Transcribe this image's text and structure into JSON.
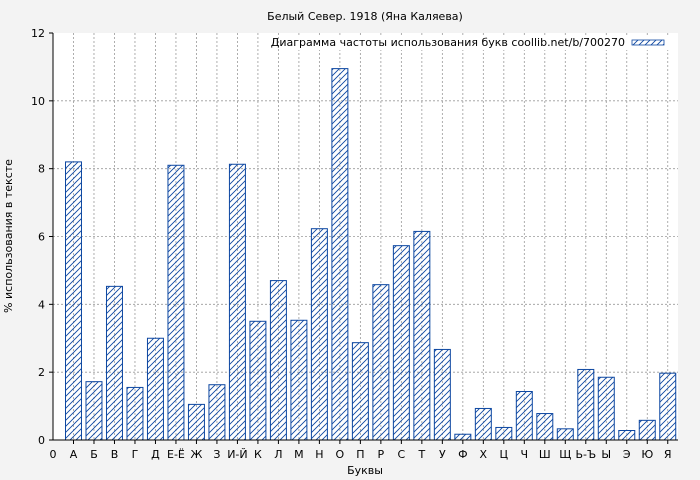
{
  "chart_data": {
    "type": "bar",
    "title": "Белый Север. 1918 (Яна Каляева)",
    "xlabel": "Буквы",
    "ylabel": "% использования в тексте",
    "legend": {
      "label": "Диаграмма частоты использования букв coollib.net/b/700270",
      "placement": "top-right"
    },
    "ylim": [
      0,
      12
    ],
    "yticks": [
      "0",
      "2",
      "4",
      "6",
      "8",
      "10",
      "12"
    ],
    "x_origin_label": "0",
    "grid": true,
    "categories": [
      "А",
      "Б",
      "В",
      "Г",
      "Д",
      "Е-Ё",
      "Ж",
      "З",
      "И-Й",
      "К",
      "Л",
      "М",
      "Н",
      "О",
      "П",
      "Р",
      "С",
      "Т",
      "У",
      "Ф",
      "Х",
      "Ц",
      "Ч",
      "Ш",
      "Щ",
      "Ь-Ъ",
      "Ы",
      "Э",
      "Ю",
      "Я"
    ],
    "values": [
      8.2,
      1.72,
      4.53,
      1.55,
      3.0,
      8.1,
      1.05,
      1.63,
      8.13,
      3.5,
      4.7,
      3.53,
      6.23,
      10.95,
      2.87,
      4.58,
      5.73,
      6.15,
      2.67,
      0.17,
      0.93,
      0.37,
      1.43,
      0.78,
      0.33,
      2.08,
      1.85,
      0.28,
      0.58,
      1.97
    ],
    "colors": {
      "bar_stroke": "#0d47a1",
      "background": "#f3f3f3",
      "grid": "#9a9a9a"
    }
  }
}
